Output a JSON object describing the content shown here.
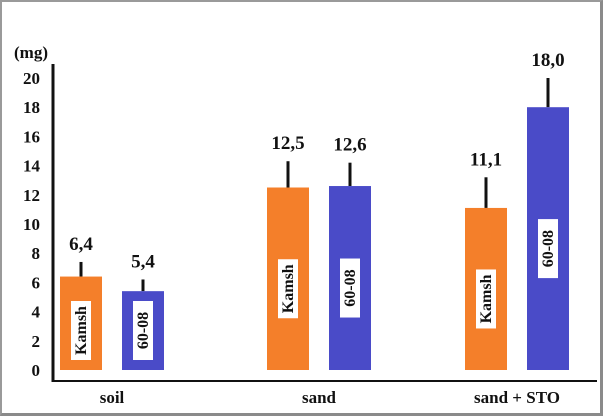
{
  "chart_data": {
    "type": "bar",
    "unit_label": "(mg)",
    "ylim": [
      0,
      20
    ],
    "yticks": [
      0,
      2,
      4,
      6,
      8,
      10,
      12,
      14,
      16,
      18,
      20
    ],
    "categories": [
      "soil",
      "sand",
      "sand + STO"
    ],
    "series": [
      {
        "name": "Kamsh",
        "color": "#F47F2A",
        "values": [
          6.4,
          12.5,
          11.1
        ],
        "errors": [
          1.0,
          1.8,
          2.1
        ],
        "value_labels": [
          "6,4",
          "12,5",
          "11,1"
        ]
      },
      {
        "name": "60-08",
        "color": "#4A4BC8",
        "values": [
          5.4,
          12.6,
          18.0
        ],
        "errors": [
          0.8,
          1.6,
          2.0
        ],
        "value_labels": [
          "5,4",
          "12,6",
          "18,0"
        ]
      }
    ],
    "grid": false,
    "legend": "none (series names written inside bars)"
  }
}
